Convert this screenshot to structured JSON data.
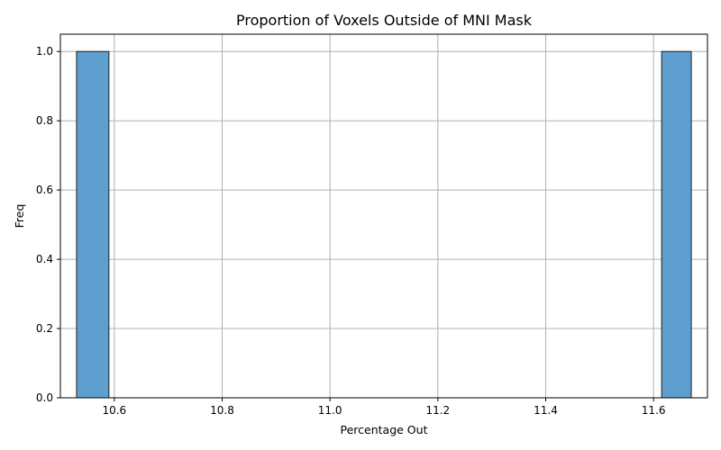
{
  "chart_data": {
    "type": "bar",
    "title": "Proportion of Voxels Outside of MNI Mask",
    "xlabel": "Percentage Out",
    "ylabel": "Freq",
    "xlim": [
      10.5,
      11.7
    ],
    "ylim": [
      0,
      1.05
    ],
    "x_ticks": [
      10.6,
      10.8,
      11.0,
      11.2,
      11.4,
      11.6
    ],
    "x_tick_labels": [
      "10.6",
      "10.8",
      "11.0",
      "11.2",
      "11.4",
      "11.6"
    ],
    "y_ticks": [
      0.0,
      0.2,
      0.4,
      0.6,
      0.8,
      1.0
    ],
    "y_tick_labels": [
      "0.0",
      "0.2",
      "0.4",
      "0.6",
      "0.8",
      "1.0"
    ],
    "grid": true,
    "bars": [
      {
        "x_start": 10.53,
        "x_end": 10.59,
        "value": 1
      },
      {
        "x_start": 11.615,
        "x_end": 11.67,
        "value": 1
      }
    ],
    "bar_color": "#5f9fcf"
  }
}
